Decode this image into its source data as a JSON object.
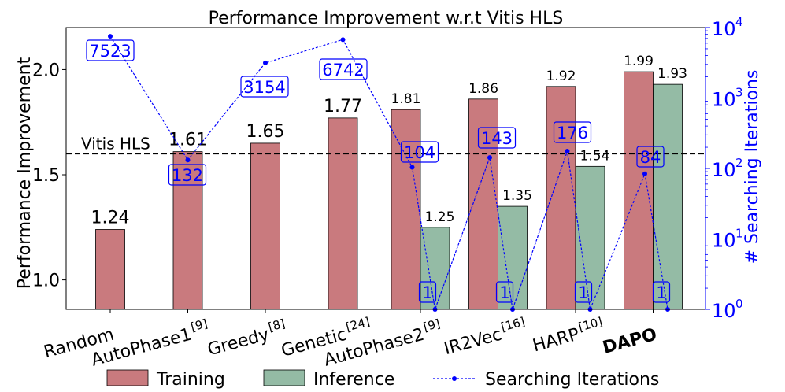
{
  "chart_data": {
    "type": "bar",
    "title": "Performance Improvement w.r.t Vitis HLS",
    "ylabel": "Performance Improvement",
    "y2label": "# Searching Iterations",
    "ylim": [
      0.86,
      2.2
    ],
    "y_ticks": [
      "1.0",
      "1.5",
      "2.0"
    ],
    "y2_scale": "log",
    "y2lim": [
      1,
      10000
    ],
    "y2_ticks": [
      "10",
      "10",
      "10",
      "10",
      "10"
    ],
    "y2_tick_exponents": [
      "0",
      "1",
      "2",
      "3",
      "4"
    ],
    "categories": [
      "Random",
      "AutoPhase1",
      "Greedy",
      "Genetic",
      "AutoPhase2",
      "IR2Vec",
      "HARP",
      "DAPO"
    ],
    "category_superscripts": [
      "",
      "[9]",
      "[8]",
      "[24]",
      "[9]",
      "[16]",
      "[10]",
      ""
    ],
    "bold_category": "DAPO",
    "series": [
      {
        "name": "Training",
        "color": "#c97a7e",
        "values": [
          1.24,
          1.61,
          1.65,
          1.77,
          1.81,
          1.86,
          1.92,
          1.99
        ],
        "labels": [
          "1.24",
          "1.61",
          "1.65",
          "1.77",
          "1.81",
          "1.86",
          "1.92",
          "1.99"
        ]
      },
      {
        "name": "Inference",
        "color": "#94bba5",
        "values": [
          null,
          null,
          null,
          null,
          1.25,
          1.35,
          1.54,
          1.93
        ],
        "labels": [
          "",
          "",
          "",
          "",
          "1.25",
          "1.35",
          "1.54",
          "1.93"
        ]
      },
      {
        "name": "Searching Iterations",
        "color": "#0000ff",
        "axis": "right",
        "style": "dashed-dot-line",
        "points": [
          {
            "category": "Random",
            "value": 7523,
            "label": "7523"
          },
          {
            "category": "AutoPhase1",
            "value": 132,
            "label": "132"
          },
          {
            "category": "Greedy",
            "value": 3154,
            "label": "3154"
          },
          {
            "category": "Genetic",
            "value": 6742,
            "label": "6742"
          },
          {
            "category": "AutoPhase2",
            "value": 104,
            "label": "104"
          },
          {
            "category": "AutoPhase2",
            "value": 1,
            "label": "1"
          },
          {
            "category": "IR2Vec",
            "value": 143,
            "label": "143"
          },
          {
            "category": "IR2Vec",
            "value": 1,
            "label": "1"
          },
          {
            "category": "HARP",
            "value": 176,
            "label": "176"
          },
          {
            "category": "HARP",
            "value": 1,
            "label": "1"
          },
          {
            "category": "DAPO",
            "value": 84,
            "label": "84"
          },
          {
            "category": "DAPO",
            "value": 1,
            "label": "1"
          }
        ]
      }
    ],
    "reference_line": {
      "label": "Vitis HLS",
      "value": 1.6,
      "style": "dashed"
    },
    "legend": {
      "placement": "bottom",
      "entries": [
        "Training",
        "Inference",
        "Searching Iterations"
      ]
    }
  }
}
